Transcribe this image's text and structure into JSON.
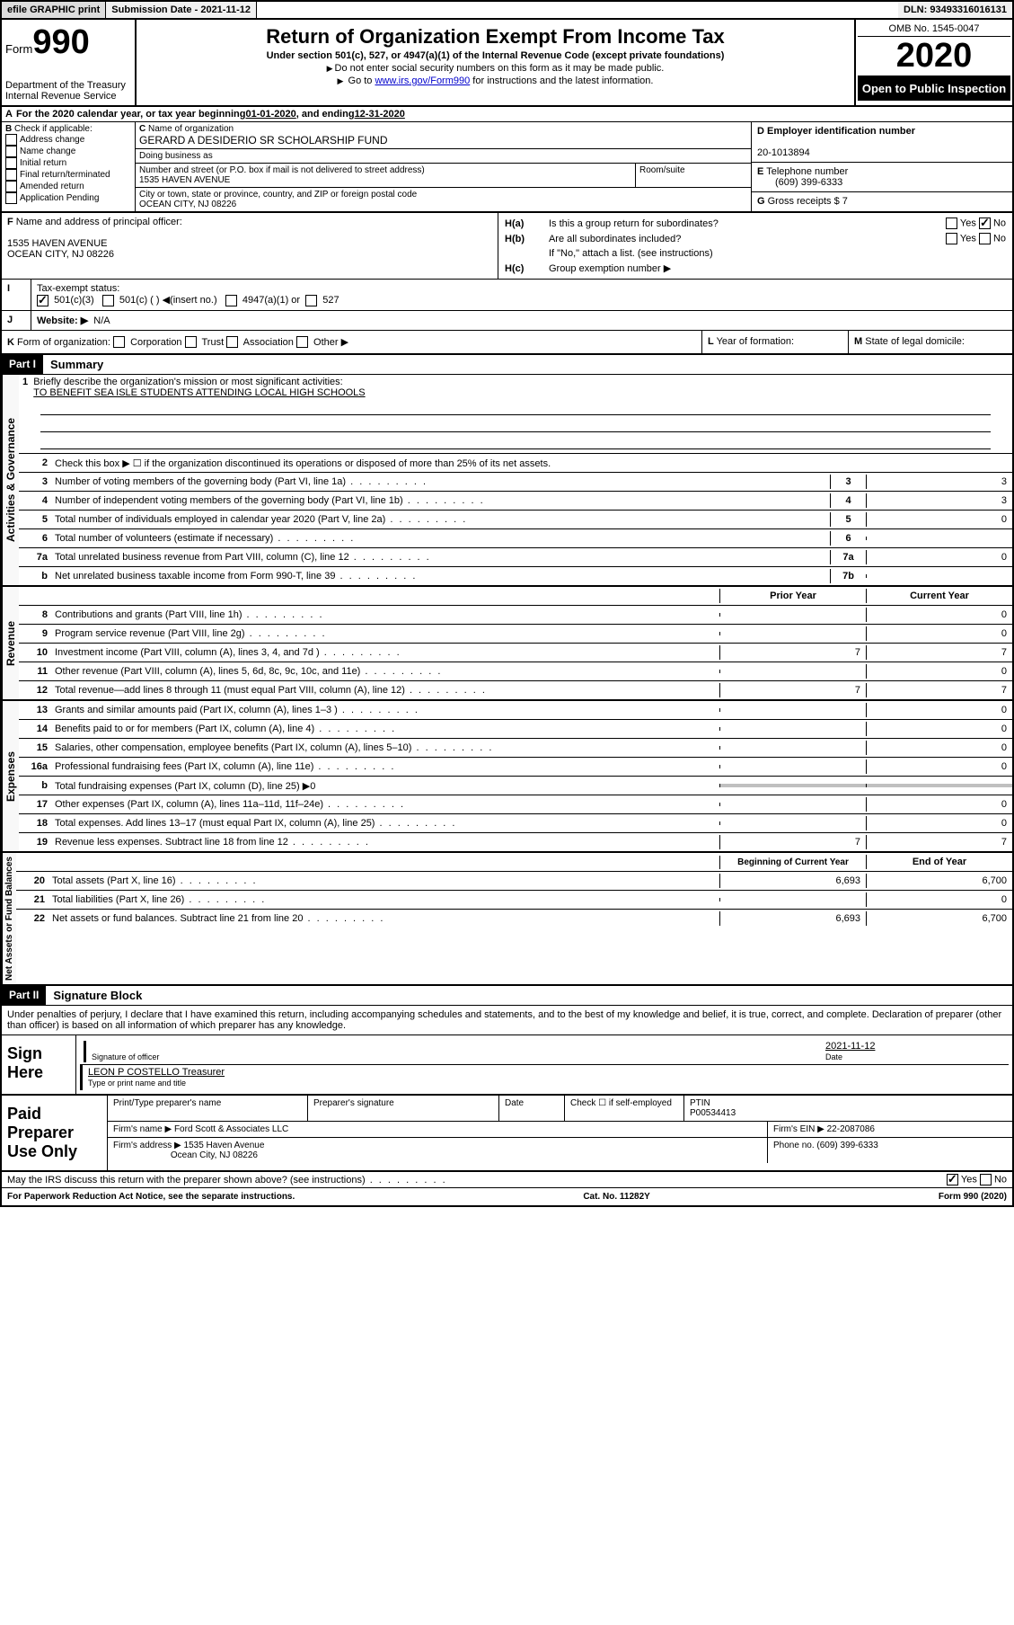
{
  "topbar": {
    "efile": "efile GRAPHIC print",
    "submission_label": "Submission Date - ",
    "submission_date": "2021-11-12",
    "dln_label": "DLN: ",
    "dln": "93493316016131"
  },
  "header": {
    "form_label": "Form",
    "form_number": "990",
    "dept": "Department of the Treasury\nInternal Revenue Service",
    "title": "Return of Organization Exempt From Income Tax",
    "subtitle": "Under section 501(c), 527, or 4947(a)(1) of the Internal Revenue Code (except private foundations)",
    "note1": "Do not enter social security numbers on this form as it may be made public.",
    "note2_pre": "Go to ",
    "note2_link": "www.irs.gov/Form990",
    "note2_post": " for instructions and the latest information.",
    "omb": "OMB No. 1545-0047",
    "year": "2020",
    "open_public": "Open to Public Inspection"
  },
  "line_a": {
    "text_pre": "For the 2020 calendar year, or tax year beginning ",
    "begin": "01-01-2020",
    "mid": "  , and ending ",
    "end": "12-31-2020"
  },
  "section_b": {
    "label": "Check if applicable:",
    "items": [
      "Address change",
      "Name change",
      "Initial return",
      "Final return/terminated",
      "Amended return",
      "Application Pending"
    ]
  },
  "section_c": {
    "name_label": "Name of organization",
    "org_name": "GERARD A DESIDERIO SR SCHOLARSHIP FUND",
    "dba_label": "Doing business as",
    "street_label": "Number and street (or P.O. box if mail is not delivered to street address)",
    "street": "1535 HAVEN AVENUE",
    "suite_label": "Room/suite",
    "city_label": "City or town, state or province, country, and ZIP or foreign postal code",
    "city": "OCEAN CITY, NJ  08226"
  },
  "section_d": {
    "ein_label": "Employer identification number",
    "ein": "20-1013894",
    "phone_label": "Telephone number",
    "phone": "(609) 399-6333",
    "gross_label": "Gross receipts $ ",
    "gross": "7"
  },
  "section_f": {
    "label": "Name and address of principal officer:",
    "addr1": "1535 HAVEN AVENUE",
    "addr2": "OCEAN CITY, NJ  08226"
  },
  "section_h": {
    "ha": "Is this a group return for subordinates?",
    "hb": "Are all subordinates included?",
    "hb_note": "If \"No,\" attach a list. (see instructions)",
    "hc": "Group exemption number ▶"
  },
  "tax_status": {
    "label": "Tax-exempt status:",
    "opts": [
      "501(c)(3)",
      "501(c) (  ) ◀(insert no.)",
      "4947(a)(1) or",
      "527"
    ]
  },
  "website": {
    "label": "Website: ▶",
    "value": "N/A"
  },
  "k": {
    "label": "Form of organization:",
    "opts": [
      "Corporation",
      "Trust",
      "Association",
      "Other ▶"
    ]
  },
  "l": {
    "label": "Year of formation:"
  },
  "m": {
    "label": "State of legal domicile:"
  },
  "part1": {
    "header": "Part I",
    "title": "Summary",
    "line1_label": "Briefly describe the organization's mission or most significant activities:",
    "line1_value": "TO BENEFIT SEA ISLE STUDENTS ATTENDING LOCAL HIGH SCHOOLS",
    "line2_label": "Check this box ▶ ☐ if the organization discontinued its operations or disposed of more than 25% of its net assets.",
    "governance": [
      {
        "num": "3",
        "label": "Number of voting members of the governing body (Part VI, line 1a)",
        "cell": "3",
        "val": "3"
      },
      {
        "num": "4",
        "label": "Number of independent voting members of the governing body (Part VI, line 1b)",
        "cell": "4",
        "val": "3"
      },
      {
        "num": "5",
        "label": "Total number of individuals employed in calendar year 2020 (Part V, line 2a)",
        "cell": "5",
        "val": "0"
      },
      {
        "num": "6",
        "label": "Total number of volunteers (estimate if necessary)",
        "cell": "6",
        "val": ""
      },
      {
        "num": "7a",
        "label": "Total unrelated business revenue from Part VIII, column (C), line 12",
        "cell": "7a",
        "val": "0"
      },
      {
        "num": "b",
        "label": "Net unrelated business taxable income from Form 990-T, line 39",
        "cell": "7b",
        "val": ""
      }
    ],
    "col_prior": "Prior Year",
    "col_current": "Current Year",
    "revenue": [
      {
        "num": "8",
        "label": "Contributions and grants (Part VIII, line 1h)",
        "prior": "",
        "current": "0"
      },
      {
        "num": "9",
        "label": "Program service revenue (Part VIII, line 2g)",
        "prior": "",
        "current": "0"
      },
      {
        "num": "10",
        "label": "Investment income (Part VIII, column (A), lines 3, 4, and 7d )",
        "prior": "7",
        "current": "7"
      },
      {
        "num": "11",
        "label": "Other revenue (Part VIII, column (A), lines 5, 6d, 8c, 9c, 10c, and 11e)",
        "prior": "",
        "current": "0"
      },
      {
        "num": "12",
        "label": "Total revenue—add lines 8 through 11 (must equal Part VIII, column (A), line 12)",
        "prior": "7",
        "current": "7"
      }
    ],
    "expenses": [
      {
        "num": "13",
        "label": "Grants and similar amounts paid (Part IX, column (A), lines 1–3 )",
        "prior": "",
        "current": "0"
      },
      {
        "num": "14",
        "label": "Benefits paid to or for members (Part IX, column (A), line 4)",
        "prior": "",
        "current": "0"
      },
      {
        "num": "15",
        "label": "Salaries, other compensation, employee benefits (Part IX, column (A), lines 5–10)",
        "prior": "",
        "current": "0"
      },
      {
        "num": "16a",
        "label": "Professional fundraising fees (Part IX, column (A), line 11e)",
        "prior": "",
        "current": "0"
      },
      {
        "num": "b",
        "label": "Total fundraising expenses (Part IX, column (D), line 25) ▶0",
        "shaded": true
      },
      {
        "num": "17",
        "label": "Other expenses (Part IX, column (A), lines 11a–11d, 11f–24e)",
        "prior": "",
        "current": "0"
      },
      {
        "num": "18",
        "label": "Total expenses. Add lines 13–17 (must equal Part IX, column (A), line 25)",
        "prior": "",
        "current": "0"
      },
      {
        "num": "19",
        "label": "Revenue less expenses. Subtract line 18 from line 12",
        "prior": "7",
        "current": "7"
      }
    ],
    "col_begin": "Beginning of Current Year",
    "col_end": "End of Year",
    "netassets": [
      {
        "num": "20",
        "label": "Total assets (Part X, line 16)",
        "prior": "6,693",
        "current": "6,700"
      },
      {
        "num": "21",
        "label": "Total liabilities (Part X, line 26)",
        "prior": "",
        "current": "0"
      },
      {
        "num": "22",
        "label": "Net assets or fund balances. Subtract line 21 from line 20",
        "prior": "6,693",
        "current": "6,700"
      }
    ],
    "vtabs": {
      "gov": "Activities & Governance",
      "rev": "Revenue",
      "exp": "Expenses",
      "net": "Net Assets or Fund Balances"
    }
  },
  "part2": {
    "header": "Part II",
    "title": "Signature Block",
    "declaration": "Under penalties of perjury, I declare that I have examined this return, including accompanying schedules and statements, and to the best of my knowledge and belief, it is true, correct, and complete. Declaration of preparer (other than officer) is based on all information of which preparer has any knowledge.",
    "sign_here": "Sign Here",
    "sig_officer": "Signature of officer",
    "sig_date_label": "Date",
    "sig_date": "2021-11-12",
    "officer_name": "LEON P COSTELLO  Treasurer",
    "type_label": "Type or print name and title",
    "paid_label": "Paid Preparer Use Only",
    "prep_name_label": "Print/Type preparer's name",
    "prep_sig_label": "Preparer's signature",
    "date_label": "Date",
    "check_label": "Check ☐ if self-employed",
    "ptin_label": "PTIN",
    "ptin": "P00534413",
    "firm_name_label": "Firm's name    ▶",
    "firm_name": "Ford Scott & Associates LLC",
    "firm_ein_label": "Firm's EIN ▶",
    "firm_ein": "22-2087086",
    "firm_addr_label": "Firm's address ▶",
    "firm_addr1": "1535 Haven Avenue",
    "firm_addr2": "Ocean City, NJ  08226",
    "firm_phone_label": "Phone no.",
    "firm_phone": "(609) 399-6333",
    "discuss": "May the IRS discuss this return with the preparer shown above? (see instructions)"
  },
  "footer": {
    "paperwork": "For Paperwork Reduction Act Notice, see the separate instructions.",
    "catno": "Cat. No. 11282Y",
    "formref": "Form 990 (2020)"
  }
}
